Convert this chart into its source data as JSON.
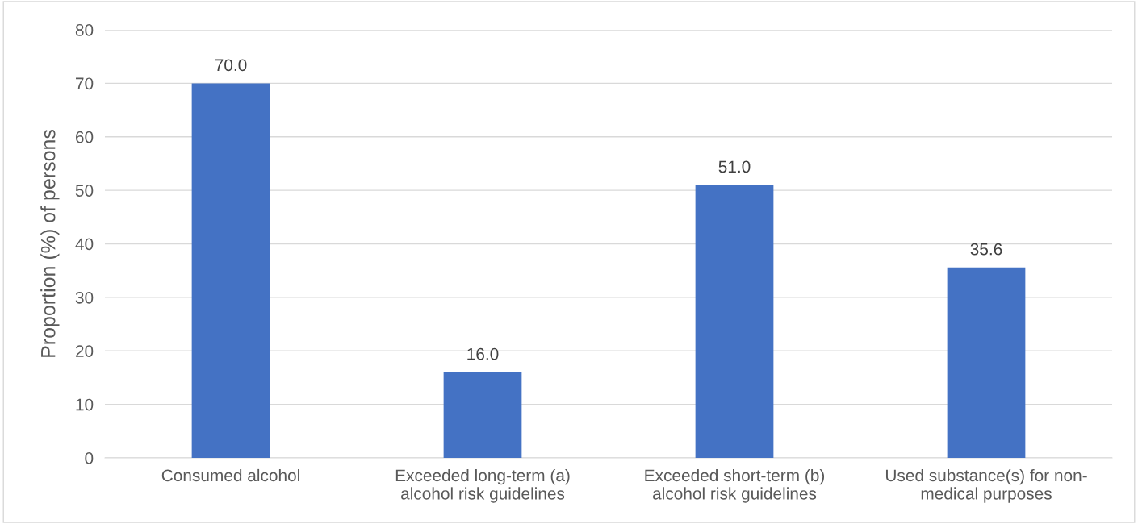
{
  "chart_data": {
    "type": "bar",
    "ylabel": "Proportion (%) of persons",
    "categories": [
      "Consumed alcohol",
      "Exceeded long-term (a)\nalcohol risk guidelines",
      "Exceeded short-term (b)\nalcohol risk guidelines",
      "Used substance(s) for non-\nmedical purposes"
    ],
    "values": [
      70.0,
      16.0,
      51.0,
      35.6
    ],
    "value_labels": [
      "70.0",
      "16.0",
      "51.0",
      "35.6"
    ],
    "color": "#4472c4",
    "ylim": [
      0,
      80
    ],
    "yticks": [
      0,
      10,
      20,
      30,
      40,
      50,
      60,
      70,
      80
    ],
    "grid": "y",
    "legend": false
  }
}
